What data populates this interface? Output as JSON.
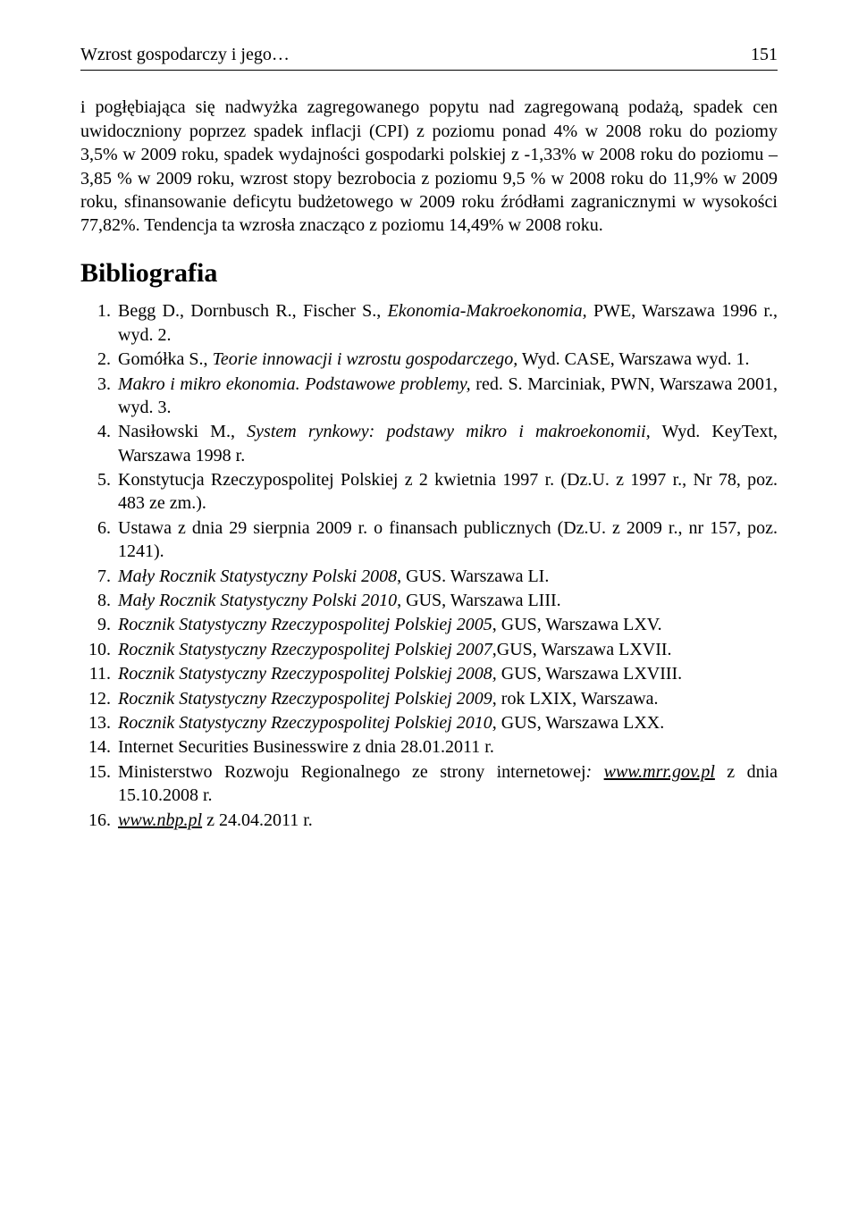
{
  "header": {
    "running_title": "Wzrost gospodarczy i jego…",
    "page_number": "151"
  },
  "paragraph": "i pogłębiająca się nadwyżka zagregowanego popytu nad zagregowaną podażą, spadek cen uwidoczniony poprzez spadek inflacji (CPI) z poziomu ponad 4% w 2008 roku do poziomy 3,5% w 2009 roku, spadek wydajności gospodarki polskiej z -1,33% w 2008 roku do poziomu –3,85 % w 2009 roku, wzrost stopy bezrobocia z poziomu 9,5 % w 2008 roku do 11,9% w 2009 roku, sfinansowanie deficytu budżetowego w 2009 roku źródłami zagranicznymi w wysokości 77,82%. Tendencja ta wzrosła znacząco z poziomu 14,49% w 2008 roku.",
  "bibliography_title": "Bibliografia",
  "bibliography": [
    {
      "pre": "Begg D., Dornbusch R., Fischer S., ",
      "ital": "Ekonomia-Makroekonomia,",
      "post": " PWE, Warszawa 1996 r., wyd. 2."
    },
    {
      "pre": "Gomółka S., ",
      "ital": "Teorie innowacji i wzrostu gospodarczego,",
      "post": " Wyd. CASE, Warszawa wyd. 1."
    },
    {
      "pre": "",
      "ital": "Makro i mikro ekonomia. Podstawowe problemy,",
      "post": " red. S. Marciniak, PWN, Warszawa 2001, wyd. 3."
    },
    {
      "pre": "Nasiłowski M., ",
      "ital": "System rynkowy: podstawy mikro i makroekonomii,",
      "post": " Wyd. KeyText, Warszawa 1998 r."
    },
    {
      "pre": "Konstytucja Rzeczypospolitej Polskiej z 2 kwietnia 1997 r. (Dz.U. z 1997 r., Nr 78, poz. 483 ze zm.).",
      "ital": "",
      "post": ""
    },
    {
      "pre": "Ustawa z dnia 29 sierpnia 2009 r. o finansach publicznych (Dz.U. z 2009 r., nr 157, poz. 1241).",
      "ital": "",
      "post": ""
    },
    {
      "pre": "",
      "ital": "Mały Rocznik Statystyczny Polski 2008",
      "post": ", GUS. Warszawa LI."
    },
    {
      "pre": "",
      "ital": "Mały Rocznik Statystyczny Polski 2010",
      "post": ", GUS, Warszawa LIII."
    },
    {
      "pre": "",
      "ital": "Rocznik Statystyczny Rzeczypospolitej Polskiej 2005",
      "post": ", GUS, Warszawa LXV."
    },
    {
      "pre": "",
      "ital": "Rocznik Statystyczny Rzeczypospolitej Polskiej 2007",
      "post": ",GUS, Warszawa LXVII."
    },
    {
      "pre": "",
      "ital": "Rocznik Statystyczny Rzeczypospolitej Polskiej 2008,",
      "post": " GUS, Warszawa LXVIII."
    },
    {
      "pre": "",
      "ital": "Rocznik Statystyczny Rzeczypospolitej Polskiej 2009",
      "post": ", rok LXIX, Warszawa."
    },
    {
      "pre": "",
      "ital": "Rocznik Statystyczny Rzeczypospolitej Polskiej 2010",
      "post": ", GUS, Warszawa LXX."
    },
    {
      "pre": "Internet Securities Businesswire z dnia 28.01.2011 r.",
      "ital": "",
      "post": ""
    },
    {
      "pre": "Ministerstwo Rozwoju Regionalnego ze strony internetowej",
      "ital": ":",
      "post": "",
      "link": "www.mrr.gov.pl",
      "after_link": " z dnia 15.10.2008 r."
    },
    {
      "pre": "",
      "ital": "",
      "post": "",
      "link": "www.nbp.pl",
      "after_link": " z 24.04.2011 r."
    }
  ],
  "colors": {
    "text": "#000000",
    "background": "#ffffff",
    "rule": "#000000"
  },
  "typography": {
    "body_font": "Times New Roman",
    "body_size_pt": 15,
    "heading_size_pt": 22,
    "heading_weight": "bold"
  }
}
